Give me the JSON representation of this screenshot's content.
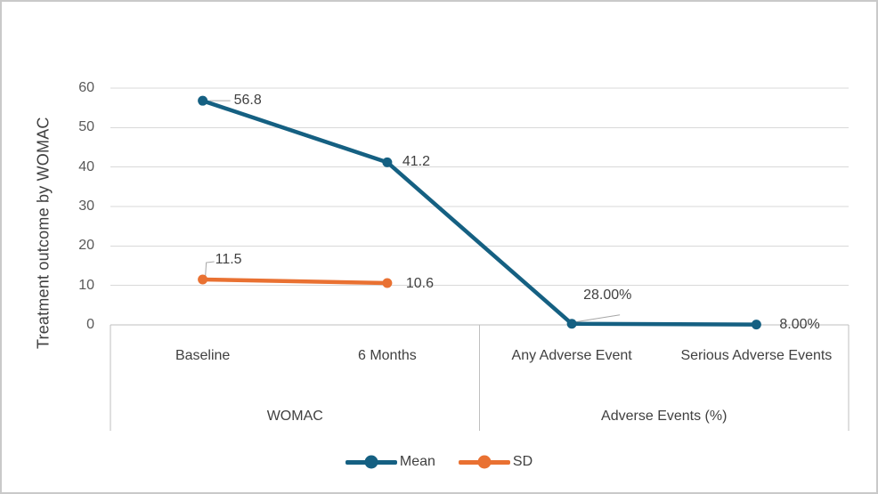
{
  "figure": {
    "background": "#FFFFFF",
    "frame_color": "#C9C9C9"
  },
  "chart_data": {
    "type": "line",
    "title": "",
    "ylabel": "Treatment outcome by WOMAC",
    "xlabel": "",
    "ylim": [
      0,
      60
    ],
    "yticks": [
      0,
      10,
      20,
      30,
      40,
      50,
      60
    ],
    "grid": "horizontal-only",
    "legend_position": "bottom-center",
    "categories": [
      "Baseline",
      "6 Months",
      "Any Adverse Event",
      "Serious Adverse Events"
    ],
    "category_groups": [
      {
        "label": "WOMAC",
        "start": 0,
        "end": 1
      },
      {
        "label": "Adverse Events (%)",
        "start": 2,
        "end": 3
      }
    ],
    "series": [
      {
        "name": "Mean",
        "color": "#156082",
        "values": [
          56.8,
          41.2,
          0.28,
          0.08
        ],
        "point_labels": [
          "56.8",
          "41.2",
          "28.00%",
          "8.00%"
        ]
      },
      {
        "name": "SD",
        "color": "#E97132",
        "values": [
          11.5,
          10.6,
          null,
          null
        ],
        "point_labels": [
          "11.5",
          "10.6",
          null,
          null
        ]
      }
    ],
    "colors": {
      "gridline": "#D9D9D9",
      "axis_box": "#BFBFBF",
      "axis_text": "#595959",
      "label_text": "#404040",
      "leader_line": "#A6A6A6"
    }
  }
}
